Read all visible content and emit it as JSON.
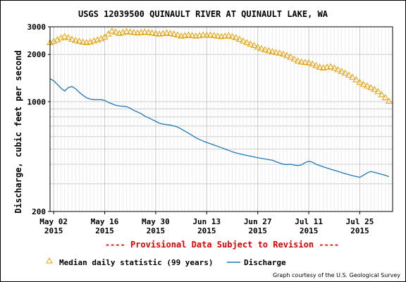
{
  "chart_data": {
    "type": "line",
    "title": "USGS 12039500 QUINAULT RIVER AT QUINAULT LAKE, WA",
    "ylabel": "Discharge, cubic feet per second",
    "xlabel": "",
    "y_scale": "log",
    "ylim": [
      200,
      3000
    ],
    "xlim": [
      "2015-05-01",
      "2015-08-03"
    ],
    "y_tick_labels": [
      "3000",
      "2000",
      "1000",
      "200"
    ],
    "x_ticks": [
      {
        "date": "2015-05-02",
        "line1": "May 02",
        "line2": "2015"
      },
      {
        "date": "2015-05-16",
        "line1": "May 16",
        "line2": "2015"
      },
      {
        "date": "2015-05-30",
        "line1": "May 30",
        "line2": "2015"
      },
      {
        "date": "2015-06-13",
        "line1": "Jun 13",
        "line2": "2015"
      },
      {
        "date": "2015-06-27",
        "line1": "Jun 27",
        "line2": "2015"
      },
      {
        "date": "2015-07-11",
        "line1": "Jul 11",
        "line2": "2015"
      },
      {
        "date": "2015-07-25",
        "line1": "Jul 25",
        "line2": "2015"
      }
    ],
    "grid": true,
    "provisional_note": "---- Provisional Data Subject to Revision ----",
    "credit": "Graph courtesy of the U.S. Geological Survey",
    "series": [
      {
        "name": "Median daily statistic (99 years)",
        "color": "#e6a100",
        "marker": "triangle",
        "x": [
          "2015-05-01",
          "2015-05-02",
          "2015-05-03",
          "2015-05-04",
          "2015-05-05",
          "2015-05-06",
          "2015-05-07",
          "2015-05-08",
          "2015-05-09",
          "2015-05-10",
          "2015-05-11",
          "2015-05-12",
          "2015-05-13",
          "2015-05-14",
          "2015-05-15",
          "2015-05-16",
          "2015-05-17",
          "2015-05-18",
          "2015-05-19",
          "2015-05-20",
          "2015-05-21",
          "2015-05-22",
          "2015-05-23",
          "2015-05-24",
          "2015-05-25",
          "2015-05-26",
          "2015-05-27",
          "2015-05-28",
          "2015-05-29",
          "2015-05-30",
          "2015-05-31",
          "2015-06-01",
          "2015-06-02",
          "2015-06-03",
          "2015-06-04",
          "2015-06-05",
          "2015-06-06",
          "2015-06-07",
          "2015-06-08",
          "2015-06-09",
          "2015-06-10",
          "2015-06-11",
          "2015-06-12",
          "2015-06-13",
          "2015-06-14",
          "2015-06-15",
          "2015-06-16",
          "2015-06-17",
          "2015-06-18",
          "2015-06-19",
          "2015-06-20",
          "2015-06-21",
          "2015-06-22",
          "2015-06-23",
          "2015-06-24",
          "2015-06-25",
          "2015-06-26",
          "2015-06-27",
          "2015-06-28",
          "2015-06-29",
          "2015-06-30",
          "2015-07-01",
          "2015-07-02",
          "2015-07-03",
          "2015-07-04",
          "2015-07-05",
          "2015-07-06",
          "2015-07-07",
          "2015-07-08",
          "2015-07-09",
          "2015-07-10",
          "2015-07-11",
          "2015-07-12",
          "2015-07-13",
          "2015-07-14",
          "2015-07-15",
          "2015-07-16",
          "2015-07-17",
          "2015-07-18",
          "2015-07-19",
          "2015-07-20",
          "2015-07-21",
          "2015-07-22",
          "2015-07-23",
          "2015-07-24",
          "2015-07-25",
          "2015-07-26",
          "2015-07-27",
          "2015-07-28",
          "2015-07-29",
          "2015-07-30",
          "2015-07-31",
          "2015-08-01",
          "2015-08-02"
        ],
        "values": [
          2380,
          2420,
          2480,
          2550,
          2600,
          2560,
          2500,
          2460,
          2430,
          2400,
          2380,
          2400,
          2440,
          2480,
          2520,
          2580,
          2700,
          2820,
          2780,
          2720,
          2760,
          2800,
          2780,
          2760,
          2740,
          2760,
          2780,
          2760,
          2740,
          2720,
          2700,
          2720,
          2740,
          2720,
          2700,
          2660,
          2620,
          2640,
          2660,
          2640,
          2620,
          2640,
          2660,
          2650,
          2660,
          2640,
          2620,
          2600,
          2620,
          2640,
          2600,
          2560,
          2500,
          2440,
          2380,
          2330,
          2280,
          2230,
          2180,
          2140,
          2110,
          2090,
          2060,
          2040,
          2010,
          1970,
          1920,
          1870,
          1820,
          1790,
          1780,
          1770,
          1740,
          1700,
          1660,
          1640,
          1660,
          1670,
          1640,
          1600,
          1560,
          1520,
          1480,
          1430,
          1380,
          1330,
          1290,
          1260,
          1230,
          1200,
          1160,
          1110,
          1060,
          1010
        ]
      },
      {
        "name": "Discharge",
        "color": "#1f77b4",
        "marker": "none",
        "x": [
          "2015-05-01",
          "2015-05-02",
          "2015-05-03",
          "2015-05-04",
          "2015-05-05",
          "2015-05-06",
          "2015-05-07",
          "2015-05-08",
          "2015-05-09",
          "2015-05-10",
          "2015-05-11",
          "2015-05-12",
          "2015-05-13",
          "2015-05-14",
          "2015-05-15",
          "2015-05-16",
          "2015-05-17",
          "2015-05-18",
          "2015-05-19",
          "2015-05-20",
          "2015-05-21",
          "2015-05-22",
          "2015-05-23",
          "2015-05-24",
          "2015-05-25",
          "2015-05-26",
          "2015-05-27",
          "2015-05-28",
          "2015-05-29",
          "2015-05-30",
          "2015-05-31",
          "2015-06-01",
          "2015-06-02",
          "2015-06-03",
          "2015-06-04",
          "2015-06-05",
          "2015-06-06",
          "2015-06-07",
          "2015-06-08",
          "2015-06-09",
          "2015-06-10",
          "2015-06-11",
          "2015-06-12",
          "2015-06-13",
          "2015-06-14",
          "2015-06-15",
          "2015-06-16",
          "2015-06-17",
          "2015-06-18",
          "2015-06-19",
          "2015-06-20",
          "2015-06-21",
          "2015-06-22",
          "2015-06-23",
          "2015-06-24",
          "2015-06-25",
          "2015-06-26",
          "2015-06-27",
          "2015-06-28",
          "2015-06-29",
          "2015-06-30",
          "2015-07-01",
          "2015-07-02",
          "2015-07-03",
          "2015-07-04",
          "2015-07-05",
          "2015-07-06",
          "2015-07-07",
          "2015-07-08",
          "2015-07-09",
          "2015-07-10",
          "2015-07-11",
          "2015-07-12",
          "2015-07-13",
          "2015-07-14",
          "2015-07-15",
          "2015-07-16",
          "2015-07-17",
          "2015-07-18",
          "2015-07-19",
          "2015-07-20",
          "2015-07-21",
          "2015-07-22",
          "2015-07-23",
          "2015-07-24",
          "2015-07-25",
          "2015-07-26",
          "2015-07-27",
          "2015-07-28",
          "2015-07-29",
          "2015-07-30",
          "2015-07-31",
          "2015-08-01",
          "2015-08-02"
        ],
        "values": [
          1400,
          1360,
          1290,
          1220,
          1170,
          1230,
          1250,
          1210,
          1150,
          1100,
          1060,
          1040,
          1030,
          1030,
          1030,
          1020,
          990,
          970,
          950,
          940,
          935,
          930,
          910,
          880,
          860,
          840,
          810,
          790,
          770,
          750,
          730,
          720,
          715,
          710,
          700,
          690,
          670,
          650,
          630,
          610,
          590,
          575,
          562,
          550,
          540,
          530,
          520,
          510,
          500,
          490,
          480,
          472,
          466,
          460,
          455,
          450,
          445,
          440,
          436,
          432,
          428,
          424,
          415,
          407,
          400,
          398,
          400,
          395,
          392,
          396,
          410,
          418,
          412,
          400,
          392,
          385,
          378,
          372,
          366,
          360,
          354,
          348,
          343,
          338,
          334,
          330,
          340,
          352,
          360,
          355,
          350,
          345,
          340,
          333
        ]
      }
    ]
  }
}
